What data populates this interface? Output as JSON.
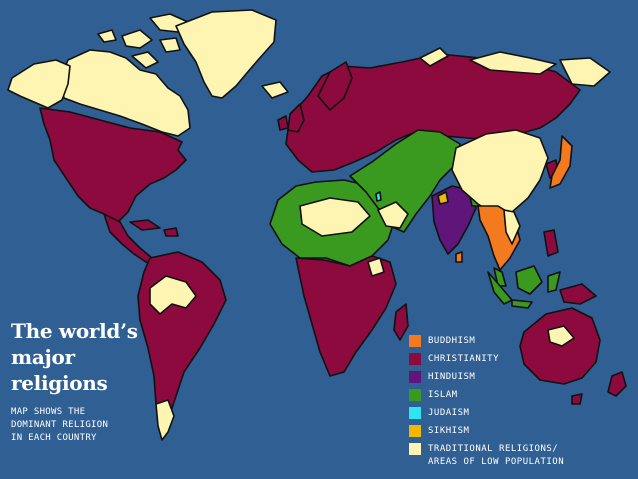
{
  "title_lines": [
    "The world’s",
    "major",
    "religions"
  ],
  "subtitle_lines": [
    "MAP SHOWS THE",
    "DOMINANT RELIGION",
    "IN EACH COUNTRY"
  ],
  "colors": {
    "ocean": "#2f5f93",
    "buddhism": "#f47a20",
    "christianity": "#8c0a3d",
    "hinduism": "#5f157a",
    "islam": "#3a9a1f",
    "judaism": "#2ee6ef",
    "sikhism": "#f1b800",
    "traditional": "#fef5b3"
  },
  "legend": [
    {
      "key": "buddhism",
      "lines": [
        "BUDDHISM"
      ]
    },
    {
      "key": "christianity",
      "lines": [
        "CHRISTIANITY"
      ]
    },
    {
      "key": "hinduism",
      "lines": [
        "HINDUISM"
      ]
    },
    {
      "key": "islam",
      "lines": [
        "ISLAM"
      ]
    },
    {
      "key": "judaism",
      "lines": [
        "JUDAISM"
      ]
    },
    {
      "key": "sikhism",
      "lines": [
        "SIKHISM"
      ]
    },
    {
      "key": "traditional",
      "lines": [
        "TRADITIONAL RELIGIONS/",
        "AREAS OF LOW POPULATION"
      ]
    }
  ],
  "regions": [
    {
      "name": "north-america",
      "religion": "christianity"
    },
    {
      "name": "north-canada-arctic",
      "religion": "traditional"
    },
    {
      "name": "alaska-yukon",
      "religion": "traditional"
    },
    {
      "name": "arctic-island-1",
      "religion": "traditional"
    },
    {
      "name": "arctic-island-2",
      "religion": "traditional"
    },
    {
      "name": "arctic-island-3",
      "religion": "traditional"
    },
    {
      "name": "arctic-island-4",
      "religion": "traditional"
    },
    {
      "name": "arctic-island-5",
      "religion": "traditional"
    },
    {
      "name": "greenland",
      "religion": "traditional"
    },
    {
      "name": "iceland",
      "religion": "traditional"
    },
    {
      "name": "central-america",
      "religion": "christianity"
    },
    {
      "name": "cuba",
      "religion": "christianity"
    },
    {
      "name": "hispaniola",
      "religion": "christianity"
    },
    {
      "name": "south-america",
      "religion": "christianity"
    },
    {
      "name": "amazon-basin",
      "religion": "traditional"
    },
    {
      "name": "patagonia",
      "religion": "traditional"
    },
    {
      "name": "europe-russia",
      "religion": "christianity"
    },
    {
      "name": "scandinavia",
      "religion": "christianity"
    },
    {
      "name": "british-isles",
      "religion": "christianity"
    },
    {
      "name": "ireland",
      "religion": "christianity"
    },
    {
      "name": "siberia-north",
      "religion": "traditional"
    },
    {
      "name": "novaya-zemlya",
      "religion": "traditional"
    },
    {
      "name": "north-africa",
      "religion": "islam"
    },
    {
      "name": "sahara",
      "religion": "traditional"
    },
    {
      "name": "middle-east-central-asia",
      "religion": "islam"
    },
    {
      "name": "southern-africa",
      "religion": "christianity"
    },
    {
      "name": "madagascar",
      "religion": "christianity"
    },
    {
      "name": "arabia-desert",
      "religion": "traditional"
    },
    {
      "name": "central-africa-patch",
      "religion": "traditional"
    },
    {
      "name": "israel",
      "religion": "judaism"
    },
    {
      "name": "india",
      "religion": "hinduism"
    },
    {
      "name": "punjab",
      "religion": "sikhism"
    },
    {
      "name": "bangladesh",
      "religion": "islam"
    },
    {
      "name": "sri-lanka",
      "religion": "buddhism"
    },
    {
      "name": "china-mongolia",
      "religion": "traditional"
    },
    {
      "name": "korea",
      "religion": "christianity"
    },
    {
      "name": "japan",
      "religion": "buddhism"
    },
    {
      "name": "southeast-asia",
      "religion": "buddhism"
    },
    {
      "name": "vietnam",
      "religion": "traditional"
    },
    {
      "name": "malaysia",
      "religion": "islam"
    },
    {
      "name": "sumatra",
      "religion": "islam"
    },
    {
      "name": "java",
      "religion": "islam"
    },
    {
      "name": "borneo",
      "religion": "islam"
    },
    {
      "name": "sulawesi",
      "religion": "islam"
    },
    {
      "name": "philippines",
      "religion": "christianity"
    },
    {
      "name": "new-guinea",
      "religion": "christianity"
    },
    {
      "name": "australia",
      "religion": "christianity"
    },
    {
      "name": "australia-interior",
      "religion": "traditional"
    },
    {
      "name": "tasmania",
      "religion": "christianity"
    },
    {
      "name": "new-zealand",
      "religion": "christianity"
    },
    {
      "name": "kamchatka",
      "religion": "traditional"
    }
  ]
}
